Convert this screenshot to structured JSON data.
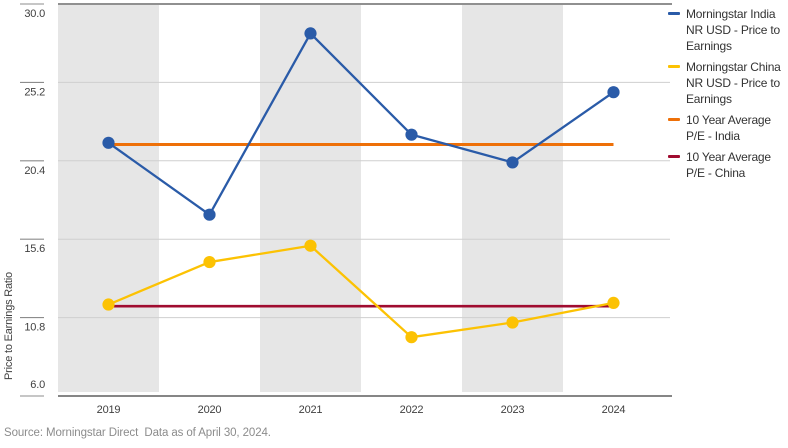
{
  "chart_data": {
    "type": "line",
    "title": "",
    "ylabel": "Price to Earnings Ratio",
    "xlabel": "",
    "categories": [
      "2019",
      "2020",
      "2021",
      "2022",
      "2023",
      "2024"
    ],
    "ylim": [
      6.0,
      30.0
    ],
    "yticks": [
      30.0,
      25.2,
      20.4,
      15.6,
      10.8,
      6.0
    ],
    "grid": "horizontal-light",
    "plot_bands": "alternating-gray-columns-starting-2019",
    "legend_position": "right",
    "series": [
      {
        "id": "india-pe",
        "name": "Morningstar India NR USD - Price to Earnings",
        "type": "line-markers",
        "color": "#2a5ba8",
        "values": [
          21.5,
          17.1,
          28.2,
          22.0,
          20.3,
          24.6
        ]
      },
      {
        "id": "china-pe",
        "name": "Morningstar China NR USD - Price to Earnings",
        "type": "line-markers",
        "color": "#fcc203",
        "values": [
          11.6,
          14.2,
          15.2,
          9.6,
          10.5,
          11.7
        ]
      },
      {
        "id": "india-10y-avg",
        "name": "10 Year Average P/E - India",
        "type": "hline",
        "color": "#ee7008",
        "value": 21.4
      },
      {
        "id": "china-10y-avg",
        "name": "10 Year Average P/E - China",
        "type": "hline",
        "color": "#a00c30",
        "value": 11.5
      }
    ]
  },
  "source_note": "Source: Morningstar Direct  Data as of April 30, 2024.",
  "colors": {
    "band_gray": "#e6e6e6",
    "gridline": "#cfcfcf",
    "top_border": "#4d4d4d",
    "axis_line": "#5e5e5e",
    "tick_mark": "#8c8c8c",
    "axis_text": "#404040",
    "legend_text": "#333333",
    "source_text": "#8c8c8c"
  }
}
